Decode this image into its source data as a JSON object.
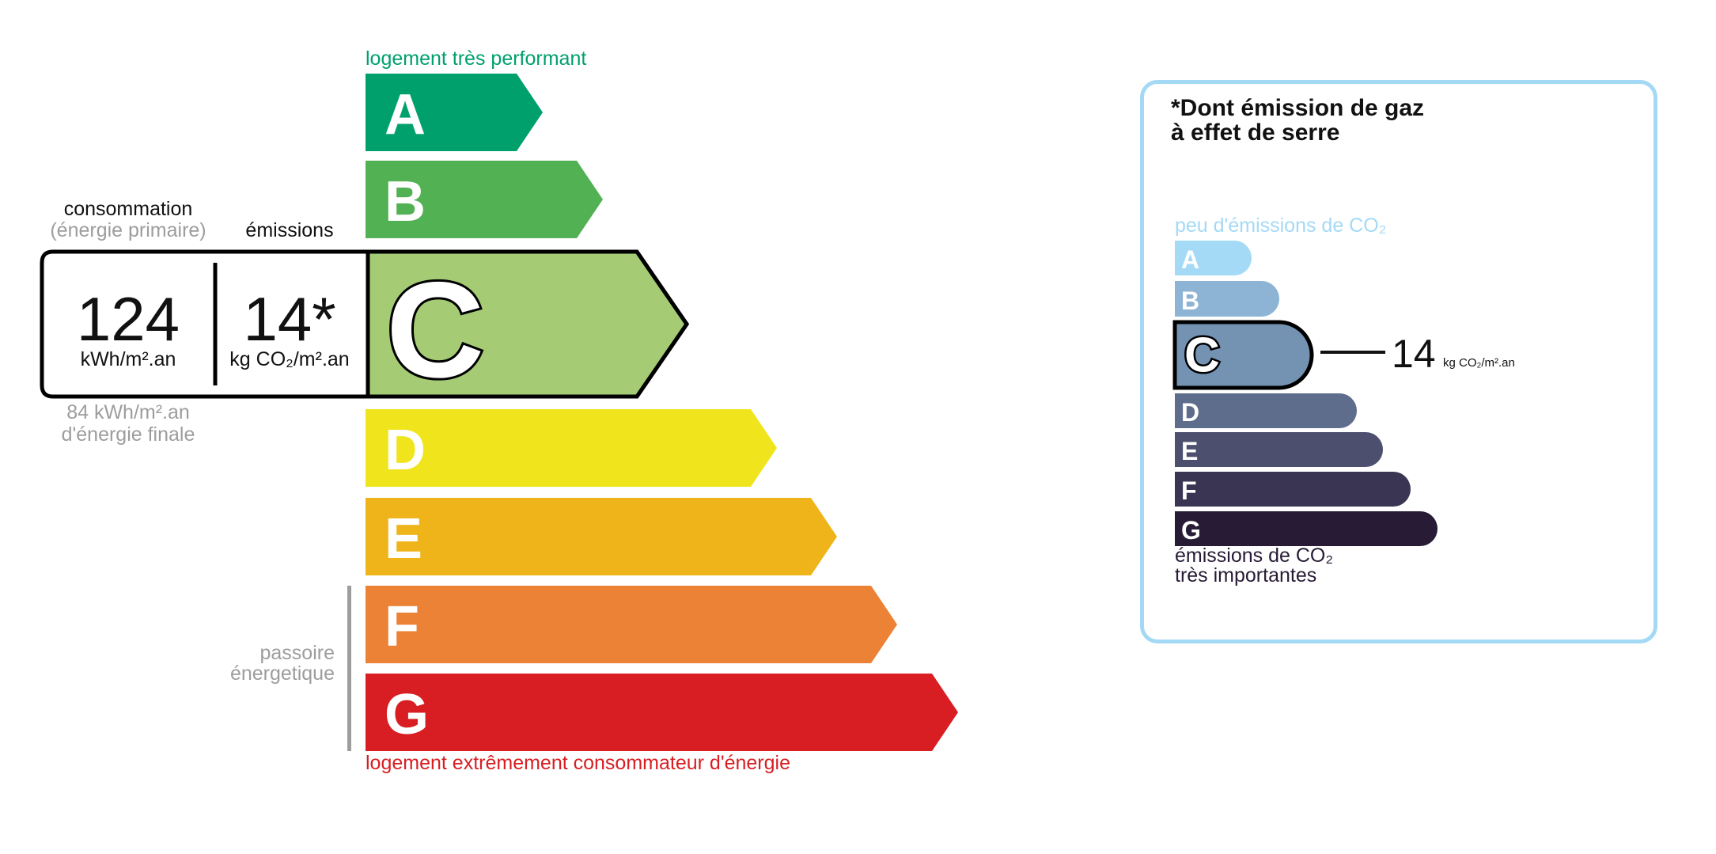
{
  "energy": {
    "top_label": "logement très performant",
    "bottom_label": "logement extrêmement consommateur d'énergie",
    "passoire_label_1": "passoire",
    "passoire_label_2": "énergetique",
    "consumption_header": "consommation",
    "consumption_subheader": "(énergie primaire)",
    "emissions_header": "émissions",
    "consumption_value": "124",
    "consumption_unit": "kWh/m².an",
    "emissions_value": "14*",
    "emissions_unit": "kg CO₂/m².an",
    "final_energy_value": "84 kWh/m².an",
    "final_energy_label": "d'énergie finale",
    "current_class": "C",
    "classes": [
      {
        "letter": "A",
        "color": "#00a06d"
      },
      {
        "letter": "B",
        "color": "#52b153"
      },
      {
        "letter": "C",
        "color": "#a5cc74"
      },
      {
        "letter": "D",
        "color": "#f0e51c"
      },
      {
        "letter": "E",
        "color": "#efb41a"
      },
      {
        "letter": "F",
        "color": "#eb8235"
      },
      {
        "letter": "G",
        "color": "#d81e22"
      }
    ]
  },
  "ges": {
    "title_1": "*Dont émission de gaz",
    "title_2": "à effet de serre",
    "top_label": "peu d'émissions de CO₂",
    "bottom_label_1": "émissions de CO₂",
    "bottom_label_2": "très importantes",
    "current_class": "C",
    "value": "14",
    "unit": "kg CO₂/m².an",
    "classes": [
      {
        "letter": "A",
        "color": "#a4daf6"
      },
      {
        "letter": "B",
        "color": "#8db4d4"
      },
      {
        "letter": "C",
        "color": "#7493b3"
      },
      {
        "letter": "D",
        "color": "#5f6d8d"
      },
      {
        "letter": "E",
        "color": "#4c4f6e"
      },
      {
        "letter": "F",
        "color": "#393552"
      },
      {
        "letter": "G",
        "color": "#281b35"
      }
    ]
  }
}
